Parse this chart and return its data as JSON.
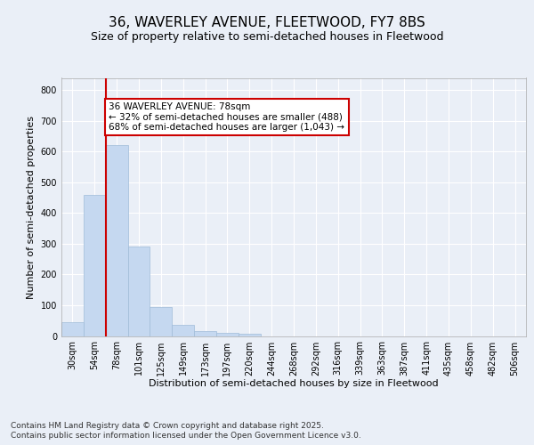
{
  "title1": "36, WAVERLEY AVENUE, FLEETWOOD, FY7 8BS",
  "title2": "Size of property relative to semi-detached houses in Fleetwood",
  "xlabel": "Distribution of semi-detached houses by size in Fleetwood",
  "ylabel": "Number of semi-detached properties",
  "categories": [
    "30sqm",
    "54sqm",
    "78sqm",
    "101sqm",
    "125sqm",
    "149sqm",
    "173sqm",
    "197sqm",
    "220sqm",
    "244sqm",
    "268sqm",
    "292sqm",
    "316sqm",
    "339sqm",
    "363sqm",
    "387sqm",
    "411sqm",
    "435sqm",
    "458sqm",
    "482sqm",
    "506sqm"
  ],
  "values": [
    45,
    460,
    620,
    290,
    93,
    35,
    17,
    9,
    6,
    0,
    0,
    0,
    0,
    0,
    0,
    0,
    0,
    0,
    0,
    0,
    0
  ],
  "bar_color": "#c5d8f0",
  "bar_edge_color": "#a0bcd8",
  "vline_x_idx": 2,
  "vline_color": "#cc0000",
  "annotation_title": "36 WAVERLEY AVENUE: 78sqm",
  "annotation_line1": "← 32% of semi-detached houses are smaller (488)",
  "annotation_line2": "68% of semi-detached houses are larger (1,043) →",
  "annotation_box_color": "#cc0000",
  "annotation_text_color": "#000000",
  "annotation_bg": "#ffffff",
  "ylim": [
    0,
    840
  ],
  "yticks": [
    0,
    100,
    200,
    300,
    400,
    500,
    600,
    700,
    800
  ],
  "footnote1": "Contains HM Land Registry data © Crown copyright and database right 2025.",
  "footnote2": "Contains public sector information licensed under the Open Government Licence v3.0.",
  "background_color": "#eaeff7",
  "plot_bg_color": "#eaeff7",
  "grid_color": "#ffffff",
  "title_fontsize": 11,
  "subtitle_fontsize": 9,
  "axis_label_fontsize": 8,
  "tick_fontsize": 7,
  "annotation_fontsize": 7.5,
  "footnote_fontsize": 6.5
}
